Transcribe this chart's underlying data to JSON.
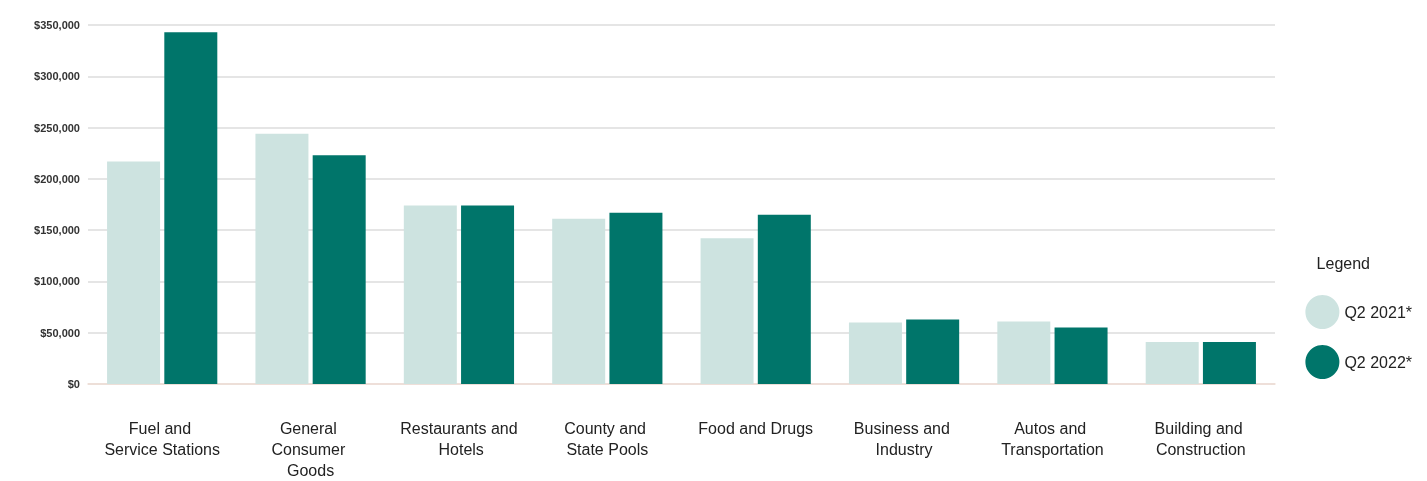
{
  "chart_data": {
    "type": "bar",
    "legend_title": "Legend",
    "categories": [
      "Fuel and Service Stations",
      "General Consumer Goods",
      "Restaurants and Hotels",
      "County and State Pools",
      "Food and Drugs",
      "Business and Industry",
      "Autos and Transportation",
      "Building and Construction"
    ],
    "series": [
      {
        "name": "Q2 2021*",
        "color": "#cde3e0",
        "values": [
          217000,
          244000,
          174000,
          161000,
          142000,
          60000,
          61000,
          41000
        ]
      },
      {
        "name": "Q2 2022*",
        "color": "#00756a",
        "values": [
          343000,
          223000,
          174000,
          167000,
          165000,
          63000,
          55000,
          41000
        ]
      }
    ],
    "ylim": [
      0,
      350000
    ],
    "yticks": [
      {
        "value": 0,
        "label": "$0"
      },
      {
        "value": 50000,
        "label": "$50,000"
      },
      {
        "value": 100000,
        "label": "$100,000"
      },
      {
        "value": 150000,
        "label": "$150,000"
      },
      {
        "value": 200000,
        "label": "$200,000"
      },
      {
        "value": 250000,
        "label": "$250,000"
      },
      {
        "value": 300000,
        "label": "$300,000"
      },
      {
        "value": 350000,
        "label": "$350,000"
      }
    ],
    "grid": "y",
    "legend": "right"
  }
}
